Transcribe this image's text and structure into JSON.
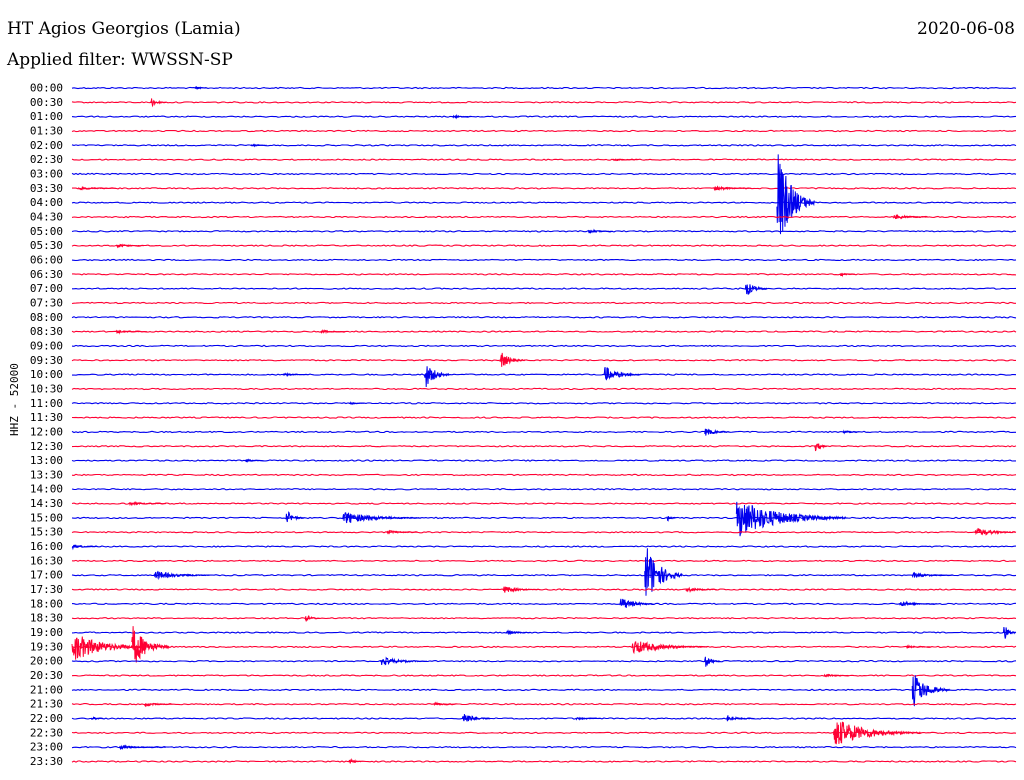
{
  "header": {
    "station": "HT Agios Georgios (Lamia)",
    "filter": "Applied filter: WWSSN-SP",
    "date": "2020-06-08"
  },
  "chart_data": {
    "type": "line",
    "title": "HT Agios Georgios (Lamia)",
    "ylabel": "HHZ - 52000",
    "xlabel": "",
    "grid": false,
    "series_colors": [
      "#0000ee",
      "#ff0033"
    ],
    "row_times": [
      "00:00",
      "00:30",
      "01:00",
      "01:30",
      "02:00",
      "02:30",
      "03:00",
      "03:30",
      "04:00",
      "04:30",
      "05:00",
      "05:30",
      "06:00",
      "06:30",
      "07:00",
      "07:30",
      "08:00",
      "08:30",
      "09:00",
      "09:30",
      "10:00",
      "10:30",
      "11:00",
      "11:30",
      "12:00",
      "12:30",
      "13:00",
      "13:30",
      "14:00",
      "14:30",
      "15:00",
      "15:30",
      "16:00",
      "16:30",
      "17:00",
      "17:30",
      "18:00",
      "18:30",
      "19:00",
      "19:30",
      "20:00",
      "20:30",
      "21:00",
      "21:30",
      "22:00",
      "22:30",
      "23:00",
      "23:30"
    ],
    "row_duration_minutes": 30,
    "events": [
      {
        "row": 0,
        "minute": 3.9,
        "amp": 2.5,
        "dur": 0.4
      },
      {
        "row": 1,
        "minute": 2.5,
        "amp": 6,
        "dur": 0.5
      },
      {
        "row": 2,
        "minute": 12.1,
        "amp": 2,
        "dur": 0.6
      },
      {
        "row": 4,
        "minute": 5.7,
        "amp": 1.5,
        "dur": 0.5
      },
      {
        "row": 5,
        "minute": 17.2,
        "amp": 1.5,
        "dur": 0.8
      },
      {
        "row": 7,
        "minute": 0.2,
        "amp": 2,
        "dur": 1.2
      },
      {
        "row": 7,
        "minute": 20.4,
        "amp": 2.5,
        "dur": 1.2
      },
      {
        "row": 8,
        "minute": 22.4,
        "amp": 58,
        "dur": 1.2
      },
      {
        "row": 9,
        "minute": 26.1,
        "amp": 3,
        "dur": 1.2
      },
      {
        "row": 10,
        "minute": 16.4,
        "amp": 2.5,
        "dur": 0.8
      },
      {
        "row": 11,
        "minute": 1.4,
        "amp": 2.5,
        "dur": 0.9
      },
      {
        "row": 13,
        "minute": 24.4,
        "amp": 2.5,
        "dur": 0.5
      },
      {
        "row": 14,
        "minute": 21.4,
        "amp": 9,
        "dur": 0.7
      },
      {
        "row": 17,
        "minute": 1.4,
        "amp": 2,
        "dur": 1.0
      },
      {
        "row": 17,
        "minute": 7.9,
        "amp": 2,
        "dur": 0.8
      },
      {
        "row": 19,
        "minute": 13.6,
        "amp": 10,
        "dur": 0.8
      },
      {
        "row": 20,
        "minute": 6.7,
        "amp": 1.5,
        "dur": 0.8
      },
      {
        "row": 20,
        "minute": 11.2,
        "amp": 16,
        "dur": 0.8
      },
      {
        "row": 20,
        "minute": 16.9,
        "amp": 9,
        "dur": 1.2
      },
      {
        "row": 22,
        "minute": 8.8,
        "amp": 2,
        "dur": 0.5
      },
      {
        "row": 24,
        "minute": 20.1,
        "amp": 5,
        "dur": 0.8
      },
      {
        "row": 24,
        "minute": 24.5,
        "amp": 2,
        "dur": 0.5
      },
      {
        "row": 25,
        "minute": 23.6,
        "amp": 8,
        "dur": 0.4
      },
      {
        "row": 26,
        "minute": 5.5,
        "amp": 2,
        "dur": 0.6
      },
      {
        "row": 29,
        "minute": 1.8,
        "amp": 2,
        "dur": 1.2
      },
      {
        "row": 30,
        "minute": 6.8,
        "amp": 9,
        "dur": 0.6
      },
      {
        "row": 30,
        "minute": 8.6,
        "amp": 7,
        "dur": 2.5
      },
      {
        "row": 30,
        "minute": 18.9,
        "amp": 5,
        "dur": 0.3
      },
      {
        "row": 30,
        "minute": 21.1,
        "amp": 22,
        "dur": 3.5
      },
      {
        "row": 31,
        "minute": 10.0,
        "amp": 2.5,
        "dur": 1.0
      },
      {
        "row": 31,
        "minute": 28.7,
        "amp": 5,
        "dur": 1.5
      },
      {
        "row": 32,
        "minute": 0.0,
        "amp": 3,
        "dur": 0.8
      },
      {
        "row": 34,
        "minute": 2.6,
        "amp": 5,
        "dur": 1.8
      },
      {
        "row": 34,
        "minute": 18.2,
        "amp": 36,
        "dur": 1.2
      },
      {
        "row": 34,
        "minute": 26.7,
        "amp": 3,
        "dur": 1.3
      },
      {
        "row": 35,
        "minute": 13.7,
        "amp": 4,
        "dur": 1.2
      },
      {
        "row": 35,
        "minute": 19.5,
        "amp": 3,
        "dur": 1.0
      },
      {
        "row": 36,
        "minute": 17.4,
        "amp": 8,
        "dur": 1.1
      },
      {
        "row": 36,
        "minute": 26.3,
        "amp": 3,
        "dur": 1.2
      },
      {
        "row": 37,
        "minute": 7.4,
        "amp": 5,
        "dur": 0.5
      },
      {
        "row": 38,
        "minute": 13.8,
        "amp": 3,
        "dur": 0.8
      },
      {
        "row": 38,
        "minute": 29.6,
        "amp": 13,
        "dur": 0.4
      },
      {
        "row": 39,
        "minute": 0.0,
        "amp": 16,
        "dur": 2.5
      },
      {
        "row": 39,
        "minute": 1.9,
        "amp": 24,
        "dur": 1.2
      },
      {
        "row": 39,
        "minute": 17.8,
        "amp": 8,
        "dur": 2.4
      },
      {
        "row": 39,
        "minute": 26.5,
        "amp": 2,
        "dur": 0.8
      },
      {
        "row": 40,
        "minute": 9.8,
        "amp": 5,
        "dur": 1.5
      },
      {
        "row": 40,
        "minute": 20.1,
        "amp": 8,
        "dur": 0.5
      },
      {
        "row": 41,
        "minute": 23.9,
        "amp": 2,
        "dur": 0.8
      },
      {
        "row": 42,
        "minute": 26.7,
        "amp": 20,
        "dur": 1.2
      },
      {
        "row": 43,
        "minute": 2.3,
        "amp": 2.5,
        "dur": 0.9
      },
      {
        "row": 43,
        "minute": 11.5,
        "amp": 2,
        "dur": 0.7
      },
      {
        "row": 44,
        "minute": 0.6,
        "amp": 3,
        "dur": 0.4
      },
      {
        "row": 44,
        "minute": 12.4,
        "amp": 8,
        "dur": 0.9
      },
      {
        "row": 44,
        "minute": 16.0,
        "amp": 2,
        "dur": 0.8
      },
      {
        "row": 44,
        "minute": 20.8,
        "amp": 4,
        "dur": 0.9
      },
      {
        "row": 45,
        "minute": 24.2,
        "amp": 16,
        "dur": 2.8
      },
      {
        "row": 46,
        "minute": 1.5,
        "amp": 2,
        "dur": 1.5
      },
      {
        "row": 47,
        "minute": 8.8,
        "amp": 4,
        "dur": 0.4
      }
    ]
  }
}
